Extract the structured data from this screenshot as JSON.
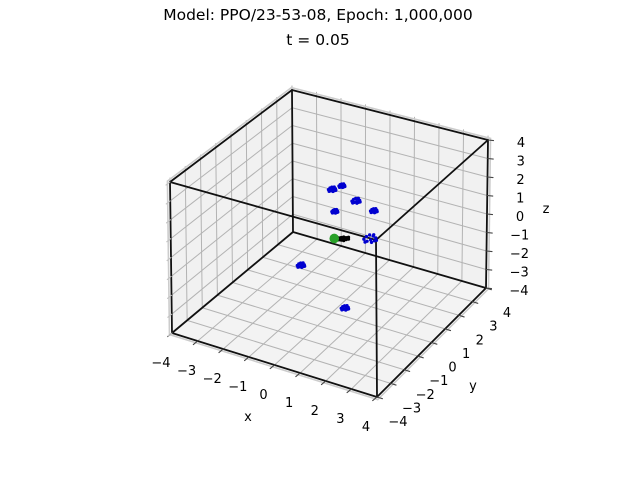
{
  "chart_data": {
    "type": "scatter",
    "projection": "3d",
    "title": "Model: PPO/23-53-08, Epoch: 1,000,000",
    "subtitle": "t = 0.05",
    "xlabel": "x",
    "ylabel": "y",
    "zlabel": "z",
    "xlim": [
      -4,
      4
    ],
    "ylim": [
      -4,
      4
    ],
    "zlim": [
      -4,
      4
    ],
    "xticks": [
      -4,
      -3,
      -2,
      -1,
      0,
      1,
      2,
      3,
      4
    ],
    "yticks": [
      -4,
      -3,
      -2,
      -1,
      0,
      1,
      2,
      3,
      4
    ],
    "zticks": [
      -4,
      -3,
      -2,
      -1,
      0,
      1,
      2,
      3,
      4
    ],
    "grid": true,
    "legend": false,
    "box_outline_color": "#111111",
    "pane_wall_color": "#f1f1f1",
    "pane_floor_color": "#f3f3f3",
    "grid_color": "#b3b3b3",
    "series": [
      {
        "name": "blue-point-clusters",
        "color": "#0000d0",
        "marker": "cluster",
        "points": [
          {
            "x": -0.48,
            "y": 0.85,
            "z": 1.85,
            "s": 1.0
          },
          {
            "x": -0.28,
            "y": 1.18,
            "z": 1.9,
            "s": 0.8
          },
          {
            "x": 0.39,
            "y": 1.0,
            "z": 1.45,
            "s": 1.1
          },
          {
            "x": -0.11,
            "y": 0.4,
            "z": 1.1,
            "s": 0.8
          },
          {
            "x": 1.28,
            "y": 0.7,
            "z": 1.45,
            "s": 0.9
          },
          {
            "x": 1.1,
            "y": 0.75,
            "z": -0.15,
            "s": 1.7
          },
          {
            "x": -0.86,
            "y": -0.65,
            "z": -1.37,
            "s": 1.0
          },
          {
            "x": 0.86,
            "y": -0.6,
            "z": -3.0,
            "s": 1.0
          }
        ]
      },
      {
        "name": "black-marker-cluster",
        "color": "#000000",
        "marker": "cluster",
        "points": [
          {
            "x": 0.35,
            "y": 0.18,
            "z": -0.05,
            "s": 1.2
          }
        ]
      },
      {
        "name": "green-marker",
        "color": "#28a028",
        "marker": "circle",
        "points": [
          {
            "x": 0.1,
            "y": 0.0,
            "z": 0.0,
            "s": 1.0
          }
        ]
      }
    ]
  }
}
